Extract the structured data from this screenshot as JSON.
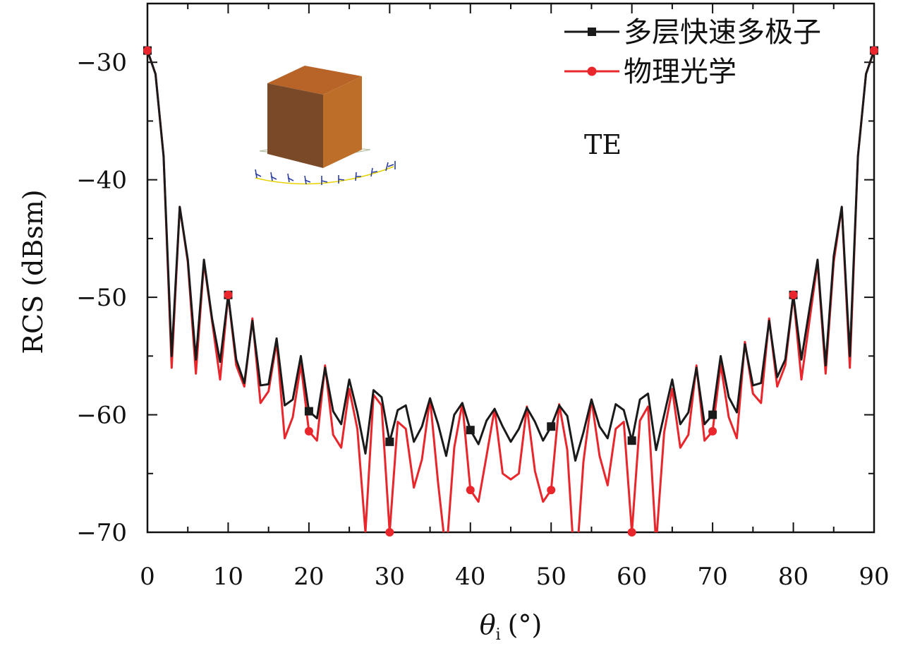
{
  "chart_data": {
    "type": "line",
    "xlabel_symbol": "θ",
    "xlabel_subscript": "i",
    "xlabel_unit": "(°)",
    "ylabel": "RCS (dBsm)",
    "xlim": [
      0,
      90
    ],
    "ylim": [
      -70,
      -25
    ],
    "x_ticks": [
      0,
      10,
      20,
      30,
      40,
      50,
      60,
      70,
      80,
      90
    ],
    "y_ticks": [
      -70,
      -60,
      -50,
      -40,
      -30
    ],
    "annotation": "TE",
    "legend_position": "top-right",
    "series": [
      {
        "name": "多层快速多极子",
        "color": "#1a1a1a",
        "marker": "square",
        "marker_every": 10,
        "x": [
          0,
          1,
          2,
          3,
          4,
          5,
          6,
          7,
          8,
          9,
          10,
          11,
          12,
          13,
          14,
          15,
          16,
          17,
          18,
          19,
          20,
          21,
          22,
          23,
          24,
          25,
          26,
          27,
          28,
          29,
          30,
          31,
          32,
          33,
          34,
          35,
          36,
          37,
          38,
          39,
          40,
          41,
          42,
          43,
          44,
          45,
          46,
          47,
          48,
          49,
          50,
          51,
          52,
          53,
          54,
          55,
          56,
          57,
          58,
          59,
          60,
          61,
          62,
          63,
          64,
          65,
          66,
          67,
          68,
          69,
          70,
          71,
          72,
          73,
          74,
          75,
          76,
          77,
          78,
          79,
          80,
          81,
          82,
          83,
          84,
          85,
          86,
          87,
          88,
          89,
          90
        ],
        "y": [
          -29.0,
          -31.0,
          -38.0,
          -55.0,
          -42.3,
          -46.8,
          -55.3,
          -46.8,
          -51.8,
          -55.5,
          -49.8,
          -55.3,
          -57.3,
          -52.0,
          -57.5,
          -57.4,
          -53.5,
          -59.2,
          -58.7,
          -55.0,
          -59.7,
          -60.3,
          -56.0,
          -59.7,
          -60.8,
          -57.0,
          -59.8,
          -63.3,
          -57.9,
          -58.5,
          -62.3,
          -59.6,
          -59.2,
          -62.3,
          -61.0,
          -58.6,
          -60.8,
          -63.5,
          -60.0,
          -59.0,
          -61.3,
          -62.5,
          -60.5,
          -59.5,
          -61.0,
          -62.3,
          -61.2,
          -59.4,
          -60.6,
          -62.2,
          -61.0,
          -59.2,
          -60.1,
          -63.9,
          -61.5,
          -58.7,
          -61.0,
          -62.0,
          -59.1,
          -59.6,
          -62.2,
          -58.7,
          -58.2,
          -63.0,
          -60.0,
          -57.0,
          -60.8,
          -59.8,
          -56.0,
          -60.8,
          -60.0,
          -55.0,
          -58.5,
          -59.8,
          -54.0,
          -57.5,
          -57.3,
          -52.0,
          -56.8,
          -55.3,
          -49.8,
          -55.3,
          -51.0,
          -46.8,
          -55.8,
          -46.5,
          -42.3,
          -55.0,
          -38.0,
          -31.0,
          -29.0
        ]
      },
      {
        "name": "物理光学",
        "color": "#e8262b",
        "marker": "circle",
        "marker_every": 10,
        "x": [
          0,
          1,
          2,
          3,
          4,
          5,
          6,
          7,
          8,
          9,
          10,
          11,
          12,
          13,
          14,
          15,
          16,
          17,
          18,
          19,
          20,
          21,
          22,
          23,
          24,
          25,
          26,
          27,
          28,
          29,
          30,
          31,
          32,
          33,
          34,
          35,
          36,
          37,
          38,
          39,
          40,
          41,
          42,
          43,
          44,
          45,
          46,
          47,
          48,
          49,
          50,
          51,
          52,
          53,
          54,
          55,
          56,
          57,
          58,
          59,
          60,
          61,
          62,
          63,
          64,
          65,
          66,
          67,
          68,
          69,
          70,
          71,
          72,
          73,
          74,
          75,
          76,
          77,
          78,
          79,
          80,
          81,
          82,
          83,
          84,
          85,
          86,
          87,
          88,
          89,
          90
        ],
        "y": [
          -29.0,
          -31.0,
          -38.0,
          -56.0,
          -42.3,
          -47.0,
          -56.5,
          -47.0,
          -52.0,
          -57.0,
          -49.8,
          -55.8,
          -57.6,
          -51.8,
          -59.0,
          -58.0,
          -53.8,
          -62.0,
          -60.2,
          -55.7,
          -61.4,
          -62.2,
          -55.8,
          -61.7,
          -62.8,
          -57.8,
          -61.2,
          -70.0,
          -58.3,
          -59.2,
          -70.0,
          -60.6,
          -61.2,
          -66.2,
          -63.8,
          -58.6,
          -65.8,
          -72.0,
          -62.8,
          -59.0,
          -66.4,
          -67.4,
          -63.5,
          -59.5,
          -65.0,
          -65.5,
          -65.0,
          -59.3,
          -64.8,
          -67.4,
          -66.4,
          -59.1,
          -63.0,
          -74.0,
          -64.0,
          -58.7,
          -63.5,
          -66.0,
          -61.2,
          -60.6,
          -70.0,
          -60.5,
          -59.3,
          -71.0,
          -61.5,
          -57.8,
          -62.8,
          -61.7,
          -55.8,
          -62.2,
          -61.4,
          -55.7,
          -60.2,
          -62.0,
          -53.8,
          -58.2,
          -59.0,
          -51.8,
          -57.6,
          -55.8,
          -49.8,
          -57.0,
          -52.0,
          -47.0,
          -56.5,
          -47.0,
          -42.3,
          -56.0,
          -38.0,
          -31.0,
          -29.0
        ]
      }
    ]
  }
}
